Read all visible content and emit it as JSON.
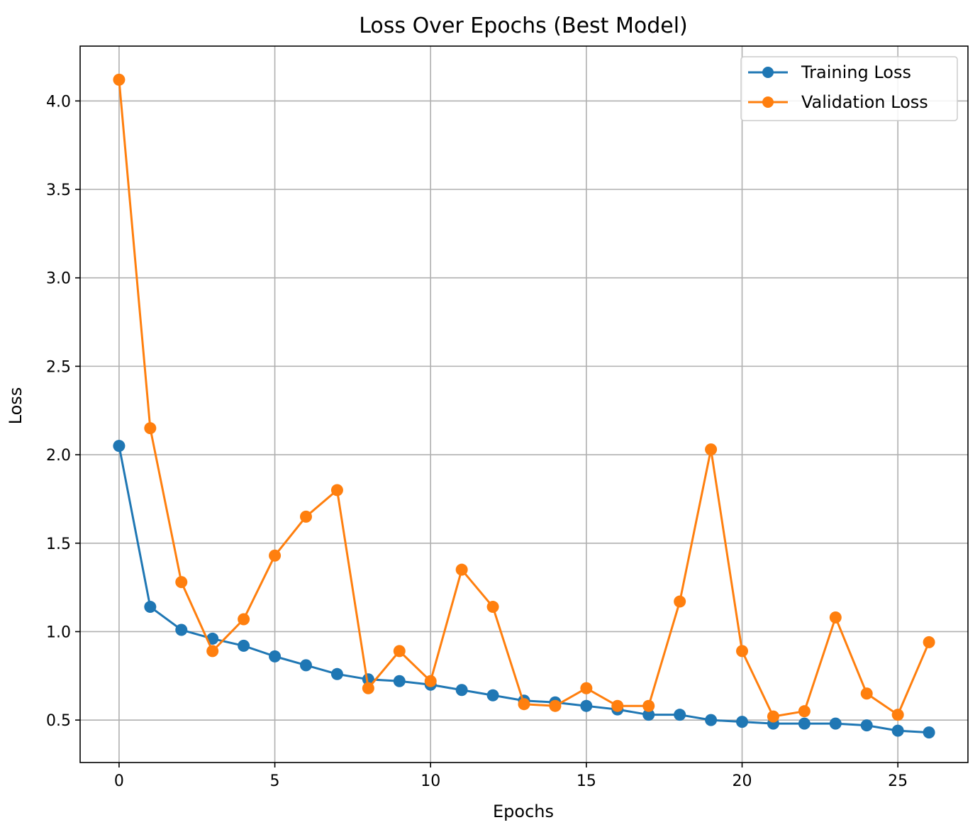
{
  "chart_data": {
    "type": "line",
    "title": "Loss Over Epochs (Best Model)",
    "xlabel": "Epochs",
    "ylabel": "Loss",
    "xlim": [
      -1.25,
      27.25
    ],
    "ylim": [
      0.26,
      4.31
    ],
    "xticks": [
      0,
      5,
      10,
      15,
      20,
      25
    ],
    "yticks": [
      0.5,
      1.0,
      1.5,
      2.0,
      2.5,
      3.0,
      3.5,
      4.0
    ],
    "xtick_labels": [
      "0",
      "5",
      "10",
      "15",
      "20",
      "25"
    ],
    "ytick_labels": [
      "0.5",
      "1.0",
      "1.5",
      "2.0",
      "2.5",
      "3.0",
      "3.5",
      "4.0"
    ],
    "grid": true,
    "legend_position": "top-right",
    "x": [
      0,
      1,
      2,
      3,
      4,
      5,
      6,
      7,
      8,
      9,
      10,
      11,
      12,
      13,
      14,
      15,
      16,
      17,
      18,
      19,
      20,
      21,
      22,
      23,
      24,
      25,
      26
    ],
    "series": [
      {
        "name": "Training Loss",
        "color": "#1f77b4",
        "values": [
          2.05,
          1.14,
          1.01,
          0.96,
          0.92,
          0.86,
          0.81,
          0.76,
          0.73,
          0.72,
          0.7,
          0.67,
          0.64,
          0.61,
          0.6,
          0.58,
          0.56,
          0.53,
          0.53,
          0.5,
          0.49,
          0.48,
          0.48,
          0.48,
          0.47,
          0.44,
          0.43
        ]
      },
      {
        "name": "Validation Loss",
        "color": "#ff7f0e",
        "values": [
          4.12,
          2.15,
          1.28,
          0.89,
          1.07,
          1.43,
          1.65,
          1.8,
          0.68,
          0.89,
          0.72,
          1.35,
          1.14,
          0.59,
          0.58,
          0.68,
          0.58,
          0.58,
          1.17,
          2.03,
          0.89,
          0.52,
          0.55,
          1.08,
          0.65,
          0.53,
          0.94
        ]
      }
    ]
  }
}
